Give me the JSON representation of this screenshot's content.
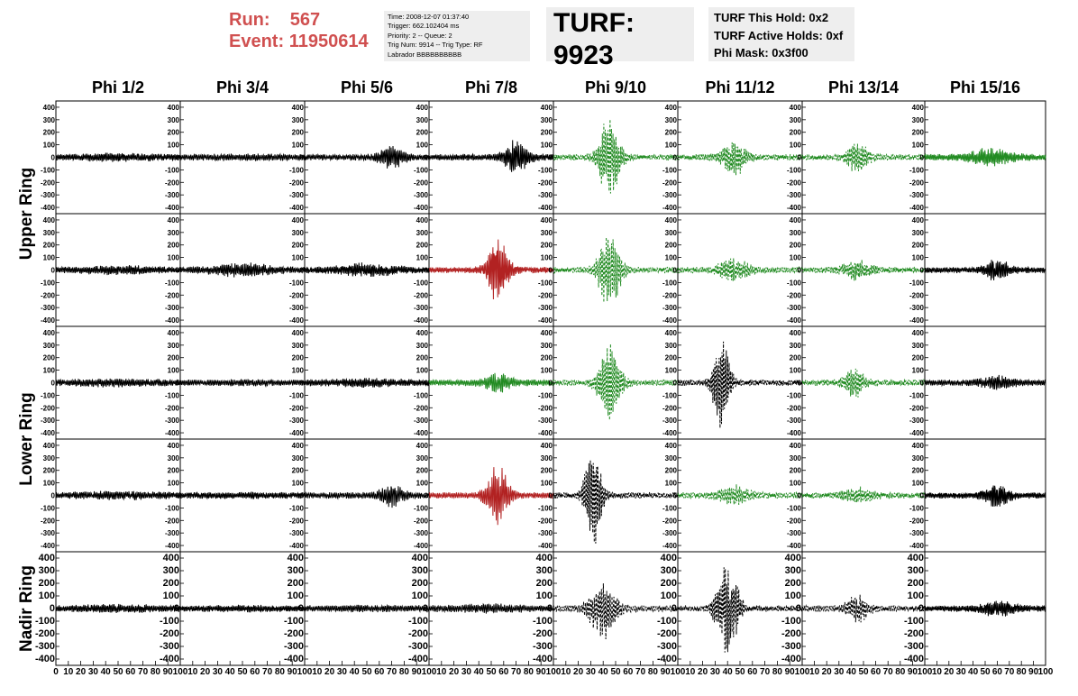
{
  "header": {
    "run_label": "Run:",
    "run_value": "567",
    "event_label": "Event:",
    "event_value": "11950614",
    "info_lines": [
      "Time: 2008-12-07 01:37:40",
      "Trigger: 662.102404 ms",
      "Priority: 2 -- Queue: 2",
      "Trig Num: 9914 -- Trig Type: RF",
      "Labrador BBBBBBBBBB"
    ],
    "turf": "TURF: 9923",
    "turf_lines": [
      "TURF This Hold: 0x2",
      "TURF Active Holds: 0xf",
      "Phi Mask: 0x3f00"
    ]
  },
  "columns": [
    "Phi 1/2",
    "Phi 3/4",
    "Phi 5/6",
    "Phi 7/8",
    "Phi 9/10",
    "Phi 11/12",
    "Phi 13/14",
    "Phi 15/16"
  ],
  "rings": [
    "Upper Ring",
    "Lower Ring",
    "Nadir Ring"
  ],
  "colors": {
    "normal": "#000000",
    "triggered": "#228B22",
    "highlight": "#b22222",
    "run": "#d05050"
  },
  "chart_data": {
    "type": "line",
    "description_rows": 5,
    "description_cols": 8,
    "ylim": [
      -450,
      450
    ],
    "y_ticks": [
      400,
      300,
      200,
      100,
      0,
      -100,
      -200,
      -300,
      -400
    ],
    "y_ticks_nadir": [
      400,
      300,
      200,
      100,
      0,
      -100,
      -200,
      -300,
      -400
    ],
    "xlim": [
      0,
      100
    ],
    "x_tick_labels": [
      "0",
      "10",
      "20",
      "30",
      "40",
      "50",
      "60",
      "70",
      "80",
      "90",
      "100"
    ],
    "panels": [
      [
        {
          "color": "normal",
          "style": "solid",
          "amp": 40,
          "center": 50,
          "width": 60
        },
        {
          "color": "normal",
          "style": "solid",
          "amp": 30,
          "center": 50,
          "width": 60
        },
        {
          "color": "normal",
          "style": "solid",
          "amp": 100,
          "center": 70,
          "width": 20
        },
        {
          "color": "normal",
          "style": "solid",
          "amp": 140,
          "center": 70,
          "width": 20
        },
        {
          "color": "triggered",
          "style": "dashed",
          "amp": 340,
          "center": 45,
          "width": 18
        },
        {
          "color": "triggered",
          "style": "dashed",
          "amp": 160,
          "center": 45,
          "width": 20
        },
        {
          "color": "triggered",
          "style": "dashed",
          "amp": 140,
          "center": 45,
          "width": 18
        },
        {
          "color": "triggered",
          "style": "solid",
          "amp": 80,
          "center": 55,
          "width": 35
        }
      ],
      [
        {
          "color": "normal",
          "style": "solid",
          "amp": 40,
          "center": 50,
          "width": 60
        },
        {
          "color": "normal",
          "style": "solid",
          "amp": 60,
          "center": 50,
          "width": 50
        },
        {
          "color": "normal",
          "style": "solid",
          "amp": 60,
          "center": 50,
          "width": 50
        },
        {
          "color": "highlight",
          "style": "solid",
          "amp": 260,
          "center": 55,
          "width": 18
        },
        {
          "color": "triggered",
          "style": "dashed",
          "amp": 330,
          "center": 45,
          "width": 18
        },
        {
          "color": "triggered",
          "style": "dashed",
          "amp": 100,
          "center": 45,
          "width": 25
        },
        {
          "color": "triggered",
          "style": "dashed",
          "amp": 90,
          "center": 45,
          "width": 25
        },
        {
          "color": "normal",
          "style": "solid",
          "amp": 100,
          "center": 60,
          "width": 20
        }
      ],
      [
        {
          "color": "normal",
          "style": "solid",
          "amp": 40,
          "center": 50,
          "width": 60
        },
        {
          "color": "normal",
          "style": "solid",
          "amp": 30,
          "center": 50,
          "width": 60
        },
        {
          "color": "normal",
          "style": "solid",
          "amp": 40,
          "center": 50,
          "width": 60
        },
        {
          "color": "triggered",
          "style": "solid",
          "amp": 90,
          "center": 55,
          "width": 22
        },
        {
          "color": "triggered",
          "style": "dashed",
          "amp": 330,
          "center": 45,
          "width": 18
        },
        {
          "color": "normal",
          "style": "dashed",
          "amp": 380,
          "center": 35,
          "width": 14
        },
        {
          "color": "triggered",
          "style": "dashed",
          "amp": 130,
          "center": 42,
          "width": 18
        },
        {
          "color": "normal",
          "style": "solid",
          "amp": 60,
          "center": 60,
          "width": 30
        }
      ],
      [
        {
          "color": "normal",
          "style": "solid",
          "amp": 40,
          "center": 50,
          "width": 60
        },
        {
          "color": "normal",
          "style": "solid",
          "amp": 30,
          "center": 50,
          "width": 60
        },
        {
          "color": "normal",
          "style": "solid",
          "amp": 100,
          "center": 70,
          "width": 20
        },
        {
          "color": "highlight",
          "style": "solid",
          "amp": 260,
          "center": 55,
          "width": 18
        },
        {
          "color": "normal",
          "style": "dashed",
          "amp": 400,
          "center": 32,
          "width": 14
        },
        {
          "color": "triggered",
          "style": "dashed",
          "amp": 90,
          "center": 45,
          "width": 25
        },
        {
          "color": "triggered",
          "style": "dashed",
          "amp": 70,
          "center": 45,
          "width": 25
        },
        {
          "color": "normal",
          "style": "solid",
          "amp": 100,
          "center": 60,
          "width": 22
        }
      ],
      [
        {
          "color": "normal",
          "style": "solid",
          "amp": 40,
          "center": 50,
          "width": 60
        },
        {
          "color": "normal",
          "style": "solid",
          "amp": 30,
          "center": 50,
          "width": 60
        },
        {
          "color": "normal",
          "style": "solid",
          "amp": 30,
          "center": 50,
          "width": 60
        },
        {
          "color": "normal",
          "style": "solid",
          "amp": 40,
          "center": 50,
          "width": 60
        },
        {
          "color": "normal",
          "style": "dashed",
          "amp": 250,
          "center": 40,
          "width": 22
        },
        {
          "color": "normal",
          "style": "dashed",
          "amp": 380,
          "center": 40,
          "width": 18
        },
        {
          "color": "normal",
          "style": "dashed",
          "amp": 120,
          "center": 45,
          "width": 18
        },
        {
          "color": "normal",
          "style": "solid",
          "amp": 70,
          "center": 60,
          "width": 30
        }
      ]
    ]
  }
}
